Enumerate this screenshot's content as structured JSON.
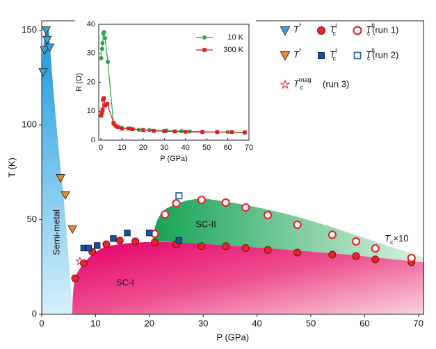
{
  "chart_data": [
    {
      "type": "scatter",
      "xlabel": "P (GPa)",
      "ylabel": "T (K)",
      "xlim": [
        0,
        71
      ],
      "ylim": [
        0,
        155
      ],
      "xticks": [
        0,
        10,
        20,
        30,
        40,
        50,
        60,
        70
      ],
      "yticks": [
        0,
        50,
        100,
        150
      ],
      "regions": [
        "Semi-metal",
        "SC-I",
        "SC-II"
      ],
      "tc_note": {
        "base": "T",
        "sub": "c",
        "rest": "×10"
      },
      "runs": [
        "(run 1)",
        "(run 2)",
        "(run 3)"
      ],
      "series": [
        {
          "name": {
            "base": "T",
            "sup": "*"
          },
          "marker": "triangle-down",
          "filled": true,
          "color": "#33a7dc",
          "x": [
            0.26,
            0.5,
            0.8,
            1.0,
            1.5
          ],
          "values": [
            128,
            139.5,
            150,
            145,
            141
          ]
        },
        {
          "name": {
            "base": "T",
            "sub": "c",
            "sup": "I"
          },
          "marker": "circle",
          "filled": true,
          "color": "#e5242b",
          "x": [
            6.2,
            7.8,
            9.4,
            12,
            14.5,
            17.4,
            21,
            25,
            29.7,
            34.2,
            37.9,
            42,
            47.5,
            54,
            58.4,
            62,
            68.7
          ],
          "values": [
            19,
            27,
            33,
            37,
            39,
            38.5,
            38,
            37,
            36,
            36,
            35,
            34,
            32.6,
            31.5,
            30.8,
            29,
            27.5
          ]
        },
        {
          "name": {
            "base": "T",
            "sub": "c",
            "sup": "II"
          },
          "marker": "circle",
          "filled": false,
          "color": "#e5242b",
          "x": [
            21,
            22.9,
            25,
            29.7,
            34.2,
            37.9,
            42,
            47.5,
            54,
            58.4,
            62,
            68.7
          ],
          "values": [
            42.5,
            52.7,
            58.6,
            60.4,
            59,
            56.4,
            52.4,
            47.3,
            42,
            38.5,
            34.8,
            29.7
          ]
        },
        {
          "name": {
            "base": "T",
            "sup": "*"
          },
          "marker": "triangle-down",
          "filled": true,
          "color": "#e8892a",
          "x": [
            3.5,
            4.4,
            5.7
          ],
          "values": [
            72,
            63,
            45
          ]
        },
        {
          "name": {
            "base": "T",
            "sub": "c",
            "sup": "I"
          },
          "marker": "square",
          "filled": true,
          "color": "#1d4f9e",
          "x": [
            7.8,
            8.7,
            10.3,
            13.3,
            15.9,
            20,
            25.5
          ],
          "values": [
            35,
            35,
            36.3,
            40,
            43,
            43,
            39
          ]
        },
        {
          "name": {
            "base": "T",
            "sub": "c",
            "sup": "II"
          },
          "marker": "square",
          "filled": false,
          "color": "#2b6cb0",
          "x": [
            25.5
          ],
          "values": [
            62.6
          ]
        },
        {
          "name": {
            "base": "T",
            "sub": "c",
            "sup": "mag"
          },
          "marker": "star",
          "filled": false,
          "color": "#e5242b",
          "x": [
            7.1
          ],
          "values": [
            28
          ]
        }
      ]
    },
    {
      "type": "line",
      "xlabel": "P (GPa)",
      "ylabel": "R (Ω)",
      "xlim": [
        -1,
        70
      ],
      "ylim": [
        0,
        40
      ],
      "xticks": [
        0,
        10,
        20,
        30,
        40,
        50,
        60,
        70
      ],
      "yticks": [
        0,
        10,
        20,
        30,
        40
      ],
      "series": [
        {
          "name": "10 K",
          "marker": "circle",
          "color": "#2ca44a",
          "x": [
            0.2,
            0.6,
            0.8,
            1.2,
            1.5,
            2,
            3.3,
            6,
            7,
            8.5,
            10,
            14,
            18,
            23,
            31,
            38,
            42,
            48,
            55,
            60,
            68
          ],
          "values": [
            28.3,
            31.5,
            33.5,
            36.8,
            37.3,
            35.2,
            27,
            5.5,
            5,
            4.5,
            4.2,
            4,
            3.6,
            3.5,
            3.3,
            3.1,
            3,
            2.9,
            2.8,
            2.8,
            2.6
          ]
        },
        {
          "name": "300 K",
          "marker": "square",
          "color": "#e02020",
          "x": [
            0.2,
            0.5,
            0.8,
            1,
            1.5,
            2,
            3,
            6,
            7,
            8,
            10,
            13,
            15,
            20,
            25,
            30,
            35,
            40,
            48,
            55,
            62,
            68
          ],
          "values": [
            8.5,
            9.5,
            10.5,
            14,
            14.5,
            12,
            12.5,
            6,
            5,
            4.5,
            4,
            4,
            3.8,
            3.5,
            3.2,
            3.1,
            3,
            2.9,
            2.8,
            2.8,
            2.8,
            2.7
          ]
        }
      ]
    }
  ]
}
